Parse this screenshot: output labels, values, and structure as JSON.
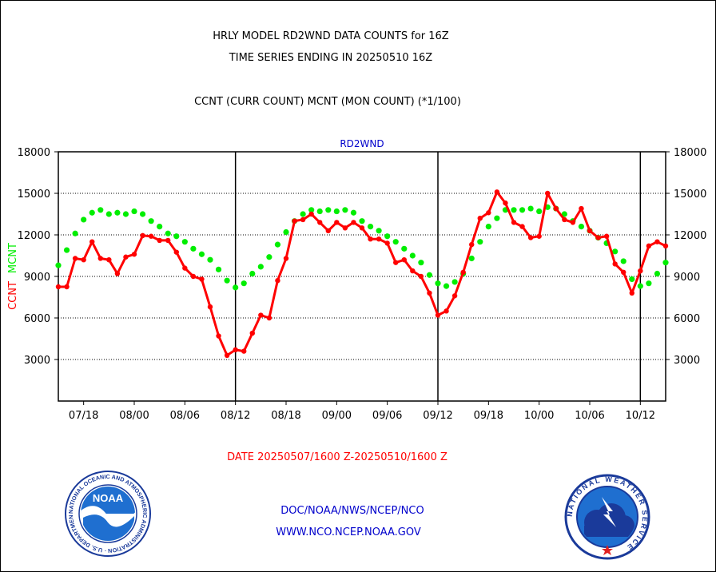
{
  "header": {
    "title_line1": "HRLY MODEL RD2WND DATA COUNTS for 16Z",
    "title_line2": "TIME SERIES ENDING IN 20250510 16Z",
    "subtitle": "CCNT (CURR COUNT) MCNT (MON COUNT) (*1/100)"
  },
  "footer": {
    "date_range": "DATE 20250507/1600 Z-20250510/1600 Z",
    "line1": "DOC/NOAA/NWS/NCEP/NCO",
    "line2": "WWW.NCO.NCEP.NOAA.GOV"
  },
  "logos": {
    "noaa_text": "NOAA",
    "noaa_ring": "NATIONAL OCEANIC AND ATMOSPHERIC ADMINISTRATION · U.S. DEPARTMENT OF COMMERCE ·",
    "nws_ring": "NATIONAL WEATHER SERVICE"
  },
  "colors": {
    "ccnt": "#ff0000",
    "mcnt": "#00ee00",
    "title_blue": "#0000cc",
    "date_red": "#ff0000"
  },
  "chart_data": {
    "type": "line",
    "title": "RD2WND",
    "ylabel_left_parts": [
      "CCNT",
      "MCNT"
    ],
    "ylim": [
      0,
      18000
    ],
    "y_ticks": [
      3000,
      6000,
      9000,
      12000,
      15000,
      18000
    ],
    "y_tick_labels": [
      "3000",
      "6000",
      "9000",
      "12000",
      "15000",
      "18000"
    ],
    "x_tick_labels": [
      "07/18",
      "08/00",
      "08/06",
      "08/12",
      "08/18",
      "09/00",
      "09/06",
      "09/12",
      "09/18",
      "10/00",
      "10/06",
      "10/12"
    ],
    "x_tick_index": [
      3,
      9,
      15,
      21,
      27,
      33,
      39,
      45,
      51,
      57,
      63,
      69
    ],
    "day_separators_index": [
      21,
      45,
      69
    ],
    "n_points": 73,
    "grid": true,
    "series": [
      {
        "name": "CCNT",
        "values": [
          8250,
          8250,
          10300,
          10200,
          11500,
          10300,
          10200,
          9200,
          10400,
          10600,
          11950,
          11900,
          11600,
          11600,
          10750,
          9600,
          9000,
          8800,
          6800,
          4700,
          3300,
          3700,
          3600,
          4900,
          6200,
          6000,
          8700,
          10300,
          13000,
          13100,
          13500,
          12900,
          12300,
          12900,
          12500,
          12900,
          12500,
          11700,
          11700,
          11400,
          10000,
          10200,
          9400,
          9000,
          7800,
          6200,
          6500,
          7600,
          9300,
          11300,
          13200,
          13600,
          15100,
          14300,
          12900,
          12600,
          11800,
          11900,
          15000,
          13900,
          13100,
          12900,
          13900,
          12300,
          11800,
          11900,
          9900,
          9300,
          7800,
          9400,
          11200,
          11500,
          11200
        ],
        "color": "#ff0000"
      },
      {
        "name": "MCNT",
        "values": [
          9800,
          10900,
          12100,
          13100,
          13600,
          13800,
          13500,
          13600,
          13500,
          13700,
          13500,
          13000,
          12600,
          12100,
          11900,
          11500,
          11000,
          10600,
          10200,
          9500,
          8700,
          8200,
          8500,
          9200,
          9700,
          10400,
          11300,
          12200,
          13000,
          13500,
          13800,
          13700,
          13800,
          13700,
          13800,
          13600,
          13000,
          12600,
          12300,
          11900,
          11500,
          11000,
          10500,
          10000,
          9100,
          8500,
          8300,
          8600,
          9200,
          10300,
          11500,
          12600,
          13200,
          13800,
          13800,
          13800,
          13900,
          13700,
          14000,
          13900,
          13500,
          13000,
          12600,
          12300,
          11800,
          11400,
          10800,
          10100,
          8800,
          8300,
          8500,
          9200,
          10000
        ],
        "color": "#00ee00"
      }
    ]
  }
}
